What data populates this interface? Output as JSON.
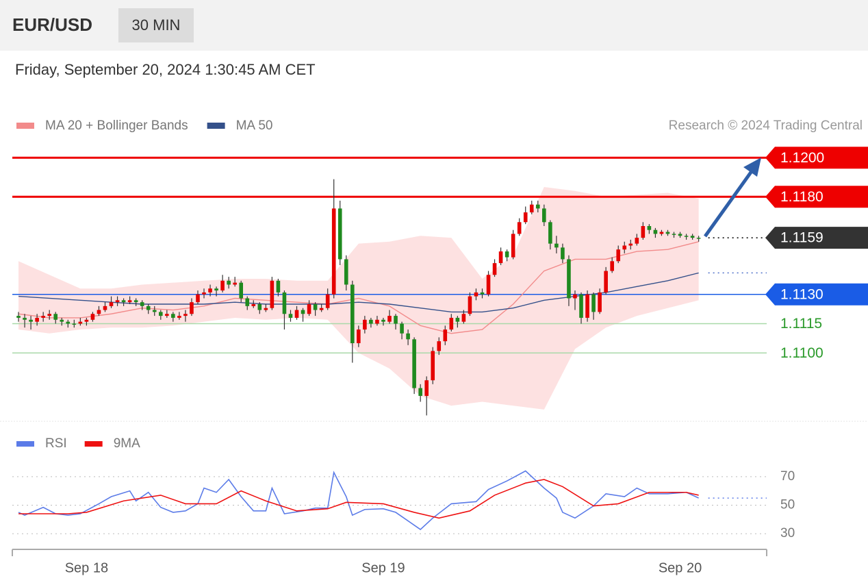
{
  "chart_data": [
    {
      "type": "candlestick",
      "title": "EUR/USD",
      "interval": "30 MIN",
      "subtitle": "Friday, September 20, 2024 1:30:45 AM CET",
      "credit": "Research © 2024 Trading Central",
      "up_color": "#e50000",
      "down_color": "#1f8a1f",
      "ylim": [
        1.1065,
        1.1205
      ],
      "x": [
        0,
        1,
        2,
        3,
        4,
        5,
        6,
        7,
        8,
        9,
        10,
        11,
        12,
        13,
        14,
        15,
        16,
        17,
        18,
        19,
        20,
        21,
        22,
        23,
        24,
        25,
        26,
        27,
        28,
        29,
        30,
        31,
        32,
        33,
        34,
        35,
        36,
        37,
        38,
        39,
        40,
        41,
        42,
        43,
        44,
        45,
        46,
        47,
        48,
        49,
        50,
        51,
        52,
        53,
        54,
        55,
        56,
        57,
        58,
        59,
        60,
        61,
        62,
        63,
        64,
        65,
        66,
        67,
        68,
        69,
        70,
        71,
        72,
        73,
        74,
        75,
        76,
        77,
        78,
        79,
        80,
        81,
        82,
        83,
        84,
        85,
        86,
        87,
        88,
        89,
        90,
        91,
        92,
        93,
        94,
        95,
        96,
        97,
        98,
        99,
        100,
        101,
        102,
        103,
        104,
        105,
        106,
        107,
        108,
        109,
        110
      ],
      "candles": [
        [
          1.1119,
          1.1121,
          1.1116,
          1.1118
        ],
        [
          1.1118,
          1.112,
          1.1113,
          1.1117
        ],
        [
          1.1117,
          1.1119,
          1.1112,
          1.1116
        ],
        [
          1.1116,
          1.112,
          1.1114,
          1.1118
        ],
        [
          1.1118,
          1.1121,
          1.1116,
          1.1119
        ],
        [
          1.1119,
          1.1122,
          1.1117,
          1.112
        ],
        [
          1.112,
          1.1121,
          1.1115,
          1.1117
        ],
        [
          1.1117,
          1.1118,
          1.1114,
          1.1116
        ],
        [
          1.1116,
          1.1117,
          1.1113,
          1.1115
        ],
        [
          1.1115,
          1.1117,
          1.1113,
          1.1115
        ],
        [
          1.1115,
          1.1118,
          1.1114,
          1.1116
        ],
        [
          1.1116,
          1.1118,
          1.1114,
          1.1117
        ],
        [
          1.1117,
          1.1121,
          1.1116,
          1.112
        ],
        [
          1.112,
          1.1124,
          1.1119,
          1.1122
        ],
        [
          1.1122,
          1.1126,
          1.1121,
          1.1124
        ],
        [
          1.1124,
          1.1129,
          1.1123,
          1.1126
        ],
        [
          1.1126,
          1.1129,
          1.1124,
          1.1127
        ],
        [
          1.1127,
          1.1128,
          1.1124,
          1.1126
        ],
        [
          1.1126,
          1.1129,
          1.1125,
          1.1127
        ],
        [
          1.1127,
          1.1128,
          1.1124,
          1.1126
        ],
        [
          1.1126,
          1.1127,
          1.1122,
          1.1124
        ],
        [
          1.1124,
          1.1125,
          1.112,
          1.1122
        ],
        [
          1.1122,
          1.1124,
          1.1119,
          1.1121
        ],
        [
          1.1121,
          1.1122,
          1.1117,
          1.1119
        ],
        [
          1.1119,
          1.1122,
          1.1118,
          1.112
        ],
        [
          1.112,
          1.1121,
          1.1116,
          1.1118
        ],
        [
          1.1118,
          1.1121,
          1.1117,
          1.1119
        ],
        [
          1.1119,
          1.1122,
          1.1116,
          1.112
        ],
        [
          1.112,
          1.1128,
          1.1119,
          1.1126
        ],
        [
          1.1126,
          1.1132,
          1.1125,
          1.113
        ],
        [
          1.113,
          1.1133,
          1.1128,
          1.1131
        ],
        [
          1.1131,
          1.1135,
          1.1129,
          1.1133
        ],
        [
          1.1133,
          1.1134,
          1.1129,
          1.1132
        ],
        [
          1.1132,
          1.114,
          1.1131,
          1.1137
        ],
        [
          1.1137,
          1.1139,
          1.1133,
          1.1135
        ],
        [
          1.1135,
          1.1139,
          1.1134,
          1.1136
        ],
        [
          1.1136,
          1.1137,
          1.1126,
          1.1128
        ],
        [
          1.1128,
          1.1129,
          1.1122,
          1.1124
        ],
        [
          1.1124,
          1.1127,
          1.1123,
          1.1125
        ],
        [
          1.1125,
          1.1126,
          1.112,
          1.1122
        ],
        [
          1.1122,
          1.1125,
          1.1121,
          1.1123
        ],
        [
          1.1123,
          1.1139,
          1.1122,
          1.1137
        ],
        [
          1.1137,
          1.1138,
          1.1129,
          1.1131
        ],
        [
          1.1131,
          1.1132,
          1.1112,
          1.112
        ],
        [
          1.112,
          1.1122,
          1.1116,
          1.1118
        ],
        [
          1.1118,
          1.1124,
          1.1117,
          1.1122
        ],
        [
          1.1122,
          1.1123,
          1.1116,
          1.112
        ],
        [
          1.112,
          1.1127,
          1.1119,
          1.1125
        ],
        [
          1.1125,
          1.1126,
          1.1119,
          1.1122
        ],
        [
          1.1122,
          1.1125,
          1.1121,
          1.1123
        ],
        [
          1.1123,
          1.1133,
          1.1122,
          1.113
        ],
        [
          1.113,
          1.1189,
          1.1128,
          1.1174
        ],
        [
          1.1174,
          1.1178,
          1.1145,
          1.1148
        ],
        [
          1.1148,
          1.115,
          1.1132,
          1.1135
        ],
        [
          1.1135,
          1.1137,
          1.1095,
          1.1105
        ],
        [
          1.1105,
          1.1114,
          1.1103,
          1.1112
        ],
        [
          1.1112,
          1.1119,
          1.111,
          1.1117
        ],
        [
          1.1117,
          1.1118,
          1.1113,
          1.1115
        ],
        [
          1.1115,
          1.1119,
          1.1114,
          1.1117
        ],
        [
          1.1117,
          1.1118,
          1.1114,
          1.1116
        ],
        [
          1.1116,
          1.1122,
          1.1115,
          1.1119
        ],
        [
          1.1119,
          1.112,
          1.1112,
          1.1115
        ],
        [
          1.1115,
          1.1116,
          1.1107,
          1.111
        ],
        [
          1.111,
          1.1112,
          1.1104,
          1.1107
        ],
        [
          1.1107,
          1.1108,
          1.1079,
          1.1082
        ],
        [
          1.1082,
          1.1084,
          1.1075,
          1.1078
        ],
        [
          1.1078,
          1.1088,
          1.1068,
          1.1086
        ],
        [
          1.1086,
          1.1103,
          1.1084,
          1.1101
        ],
        [
          1.1101,
          1.1108,
          1.1099,
          1.1106
        ],
        [
          1.1106,
          1.1114,
          1.1104,
          1.1112
        ],
        [
          1.1112,
          1.112,
          1.1111,
          1.1118
        ],
        [
          1.1118,
          1.1119,
          1.1113,
          1.1116
        ],
        [
          1.1116,
          1.1122,
          1.1115,
          1.112
        ],
        [
          1.112,
          1.1131,
          1.1119,
          1.1129
        ],
        [
          1.1129,
          1.1133,
          1.1127,
          1.1131
        ],
        [
          1.1131,
          1.1133,
          1.1128,
          1.113
        ],
        [
          1.113,
          1.1142,
          1.1129,
          1.114
        ],
        [
          1.114,
          1.1148,
          1.1139,
          1.1146
        ],
        [
          1.1146,
          1.1154,
          1.1145,
          1.1152
        ],
        [
          1.1152,
          1.1153,
          1.1147,
          1.1149
        ],
        [
          1.1149,
          1.1163,
          1.1148,
          1.1161
        ],
        [
          1.1161,
          1.1169,
          1.116,
          1.1167
        ],
        [
          1.1167,
          1.1175,
          1.1166,
          1.1172
        ],
        [
          1.1172,
          1.1178,
          1.1171,
          1.1176
        ],
        [
          1.1176,
          1.1178,
          1.1172,
          1.1174
        ],
        [
          1.1174,
          1.1176,
          1.1165,
          1.1167
        ],
        [
          1.1167,
          1.1168,
          1.1153,
          1.1156
        ],
        [
          1.1156,
          1.116,
          1.1151,
          1.1154
        ],
        [
          1.1154,
          1.1156,
          1.1146,
          1.1148
        ],
        [
          1.1148,
          1.115,
          1.1124,
          1.1128
        ],
        [
          1.1128,
          1.1132,
          1.1122,
          1.113
        ],
        [
          1.113,
          1.1131,
          1.1115,
          1.1118
        ],
        [
          1.1118,
          1.1132,
          1.1116,
          1.113
        ],
        [
          1.113,
          1.1131,
          1.1117,
          1.1121
        ],
        [
          1.1121,
          1.1133,
          1.112,
          1.1131
        ],
        [
          1.1131,
          1.1144,
          1.113,
          1.1142
        ],
        [
          1.1142,
          1.1149,
          1.1141,
          1.1147
        ],
        [
          1.1147,
          1.1155,
          1.1146,
          1.1153
        ],
        [
          1.1153,
          1.1157,
          1.1151,
          1.1155
        ],
        [
          1.1155,
          1.1158,
          1.1153,
          1.1156
        ],
        [
          1.1156,
          1.1161,
          1.1155,
          1.1159
        ],
        [
          1.1159,
          1.1167,
          1.1158,
          1.1165
        ],
        [
          1.1165,
          1.1166,
          1.1161,
          1.1163
        ],
        [
          1.1163,
          1.1164,
          1.1159,
          1.1161
        ],
        [
          1.1161,
          1.1163,
          1.116,
          1.1162
        ],
        [
          1.1162,
          1.1163,
          1.116,
          1.1161
        ],
        [
          1.1161,
          1.1162,
          1.1159,
          1.1161
        ],
        [
          1.1161,
          1.1162,
          1.1159,
          1.116
        ],
        [
          1.116,
          1.1161,
          1.1158,
          1.116
        ],
        [
          1.116,
          1.1161,
          1.1158,
          1.1159
        ],
        [
          1.1159,
          1.116,
          1.1157,
          1.1159
        ]
      ],
      "series": [
        {
          "name": "MA 20 + Bollinger Bands",
          "color": "#f28b8b",
          "band_color": "#fde1e1",
          "x": [
            0,
            5,
            10,
            15,
            20,
            25,
            30,
            35,
            40,
            45,
            50,
            55,
            60,
            65,
            70,
            75,
            80,
            85,
            90,
            95,
            100,
            105,
            110
          ],
          "values": [
            1.112,
            1.1118,
            1.1118,
            1.112,
            1.1123,
            1.1122,
            1.1124,
            1.1128,
            1.1127,
            1.1126,
            1.1125,
            1.1128,
            1.1124,
            1.1114,
            1.111,
            1.1112,
            1.1125,
            1.1142,
            1.1148,
            1.1148,
            1.1152,
            1.1153,
            1.1157
          ],
          "upper": [
            1.1147,
            1.114,
            1.1133,
            1.1133,
            1.1135,
            1.1136,
            1.1137,
            1.1138,
            1.1138,
            1.1137,
            1.1137,
            1.1156,
            1.1157,
            1.116,
            1.1159,
            1.1138,
            1.115,
            1.1185,
            1.1183,
            1.118,
            1.1181,
            1.1182,
            1.1179
          ],
          "lower": [
            1.1112,
            1.111,
            1.1112,
            1.1113,
            1.1113,
            1.1114,
            1.1116,
            1.1118,
            1.1117,
            1.1118,
            1.1117,
            1.11,
            1.1092,
            1.1078,
            1.1073,
            1.1075,
            1.1073,
            1.1071,
            1.1102,
            1.1113,
            1.1119,
            1.1123,
            1.1127
          ]
        },
        {
          "name": "MA 50",
          "color": "#34508a",
          "x": [
            0,
            5,
            10,
            15,
            20,
            25,
            30,
            35,
            40,
            45,
            50,
            55,
            60,
            65,
            70,
            75,
            80,
            85,
            90,
            95,
            100,
            105,
            110
          ],
          "values": [
            1.1129,
            1.1128,
            1.1127,
            1.1126,
            1.1125,
            1.1125,
            1.1125,
            1.1126,
            1.1125,
            1.1125,
            1.1125,
            1.1126,
            1.1125,
            1.1123,
            1.1121,
            1.1121,
            1.1123,
            1.1127,
            1.1129,
            1.1131,
            1.1134,
            1.1137,
            1.1141
          ]
        }
      ],
      "levels": [
        {
          "value": 1.12,
          "label": "1.1200",
          "color": "#ee0000",
          "line_color": "#ee0000",
          "line": "solid",
          "tag": true
        },
        {
          "value": 1.118,
          "label": "1.1180",
          "color": "#ee0000",
          "line_color": "#ee0000",
          "line": "solid",
          "tag": true
        },
        {
          "value": 1.1159,
          "label": "1.1159",
          "color": "#333333",
          "line_color": "#333333",
          "line": "dotted",
          "tag": true
        },
        {
          "value": 1.113,
          "label": "1.1130",
          "color": "#1a5ce6",
          "line_color": "#1a5ce6",
          "line": "solid",
          "tag": true
        },
        {
          "value": 1.1115,
          "label": "1.1115",
          "color": "#2a9a2a",
          "line_color": "#a9d9a9",
          "line": "solid",
          "tag": false
        },
        {
          "value": 1.11,
          "label": "1.1100",
          "color": "#2a9a2a",
          "line_color": "#a9d9a9",
          "line": "solid",
          "tag": false
        }
      ]
    },
    {
      "type": "line",
      "ylim": [
        20,
        80
      ],
      "yticks": [
        30,
        50,
        70
      ],
      "grid": true,
      "xlim": [
        -1,
        121
      ],
      "xticks": [
        {
          "value": 11,
          "label": "Sep 18"
        },
        {
          "value": 59,
          "label": "Sep 19"
        },
        {
          "value": 107,
          "label": "Sep 20"
        }
      ],
      "series": [
        {
          "name": "RSI",
          "color": "#5b7be8",
          "x": [
            0,
            1,
            4,
            6,
            8,
            10,
            13,
            15,
            18,
            19,
            21,
            23,
            25,
            27,
            29,
            30,
            32,
            34,
            36,
            38,
            40,
            41,
            43,
            46,
            48,
            50,
            51,
            53,
            54,
            56,
            59,
            61,
            64,
            65,
            67,
            70,
            74,
            76,
            79,
            82,
            85,
            87,
            88,
            90,
            93,
            95,
            98,
            100,
            102,
            105,
            108,
            110
          ],
          "values": [
            45,
            43,
            48.5,
            44,
            43,
            44,
            51,
            56,
            60,
            53,
            59,
            48.5,
            45,
            46,
            51,
            62,
            59,
            68,
            56,
            46,
            46,
            62,
            44,
            46,
            48,
            48,
            73,
            56,
            43,
            47,
            47.5,
            45,
            36,
            33,
            41,
            51,
            52.5,
            61,
            67,
            74,
            62,
            55,
            45,
            41,
            49.5,
            58,
            56,
            62,
            58,
            58,
            59,
            55
          ]
        },
        {
          "name": "9MA",
          "color": "#ee1111",
          "x": [
            0,
            8,
            11,
            17,
            23,
            27,
            32,
            36,
            40,
            45,
            50,
            53,
            59,
            64,
            68,
            73,
            77,
            82,
            85,
            88,
            93,
            97,
            102,
            108,
            110
          ],
          "values": [
            44,
            44,
            45,
            53,
            57,
            51,
            51,
            60,
            53,
            46,
            47.5,
            52,
            51,
            45,
            41,
            46,
            57,
            65.5,
            68,
            63,
            49.5,
            51,
            59,
            59,
            57
          ]
        }
      ]
    }
  ]
}
